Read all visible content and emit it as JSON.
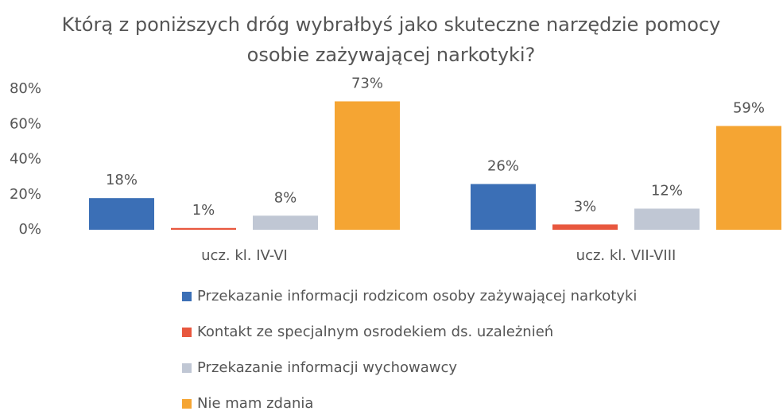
{
  "chart_data": {
    "type": "bar",
    "title": "Którą z poniższych dróg wybrałbyś jako skuteczne narzędzie pomocy osobie zażywającej narkotyki?",
    "categories": [
      "ucz. kl. IV-VI",
      "ucz. kl. VII-VIII"
    ],
    "series": [
      {
        "name": "Przekazanie informacji rodzicom osoby zażywającej narkotyki",
        "color": "#3b6fb6",
        "values": [
          18,
          26
        ],
        "value_labels": [
          "18%",
          "26%"
        ]
      },
      {
        "name": "Kontakt ze specjalnym osrodekiem ds. uzależnień",
        "color": "#e8573e",
        "values": [
          1,
          3
        ],
        "value_labels": [
          "1%",
          "3%"
        ]
      },
      {
        "name": "Przekazanie informacji wychowawcy",
        "color": "#c0c7d4",
        "values": [
          8,
          12
        ],
        "value_labels": [
          "8%",
          "12%"
        ]
      },
      {
        "name": "Nie mam zdania",
        "color": "#f5a533",
        "values": [
          73,
          59
        ],
        "value_labels": [
          "73%",
          "59%"
        ]
      }
    ],
    "ylim": [
      0,
      80
    ],
    "yticks": [
      {
        "value": 0,
        "label": "0%"
      },
      {
        "value": 20,
        "label": "20%"
      },
      {
        "value": 40,
        "label": "40%"
      },
      {
        "value": 60,
        "label": "60%"
      },
      {
        "value": 80,
        "label": "80%"
      }
    ],
    "legend": "bottom"
  }
}
